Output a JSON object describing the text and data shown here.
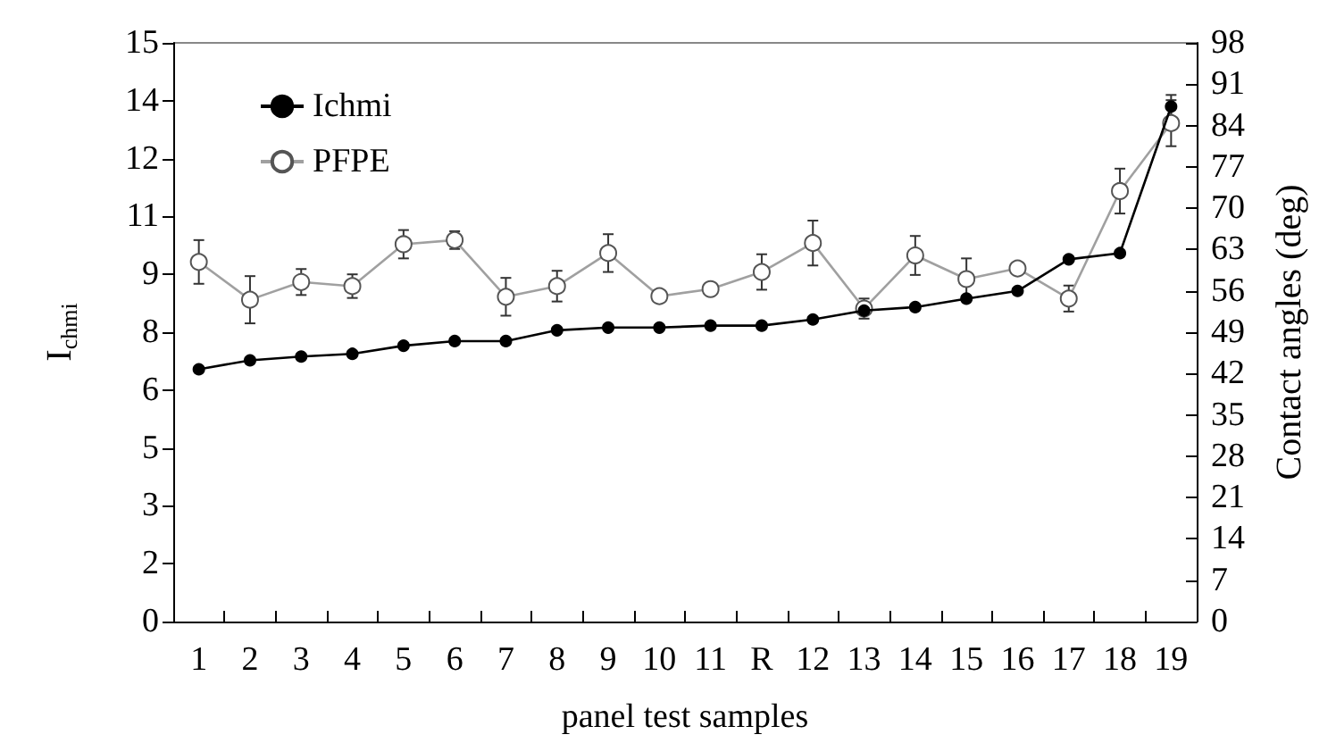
{
  "chart_data": {
    "type": "line",
    "xlabel": "panel test samples",
    "ylabel": "I$_{chmi}$",
    "y2label": "Contact angles (deg)",
    "categories": [
      "1",
      "2",
      "3",
      "4",
      "5",
      "6",
      "7",
      "8",
      "9",
      "10",
      "11",
      "R",
      "12",
      "13",
      "14",
      "15",
      "16",
      "17",
      "18",
      "19"
    ],
    "series": [
      {
        "name": "Ichmi",
        "color": "#000000",
        "values": [
          6.54,
          6.77,
          6.87,
          6.94,
          7.15,
          7.27,
          7.27,
          7.55,
          7.62,
          7.62,
          7.67,
          7.67,
          7.83,
          8.06,
          8.15,
          8.37,
          8.57,
          9.39,
          9.55,
          13.35
        ],
        "errors": [
          null,
          null,
          null,
          null,
          null,
          null,
          null,
          null,
          null,
          null,
          null,
          null,
          null,
          null,
          null,
          null,
          null,
          null,
          null,
          0.3
        ]
      },
      {
        "name": "PFPE",
        "color": "#a0a0a0",
        "axis": "y2",
        "values": [
          60.9,
          54.5,
          57.5,
          56.8,
          63.9,
          64.6,
          55.0,
          56.8,
          62.4,
          55.1,
          56.3,
          59.2,
          64.1,
          53.0,
          62.0,
          58.0,
          59.8,
          54.7,
          72.9,
          84.4
        ],
        "errors": [
          3.7,
          4.0,
          2.2,
          2.0,
          2.4,
          1.5,
          3.2,
          2.6,
          3.2,
          null,
          null,
          3.0,
          3.8,
          1.7,
          3.3,
          3.5,
          null,
          2.2,
          3.8,
          3.9
        ]
      }
    ],
    "ylim": [
      0,
      15
    ],
    "yticks": [
      0,
      {
        "value": 1.5,
        "label": "2"
      },
      3,
      {
        "value": 4.5,
        "label": "5"
      },
      6,
      {
        "value": 7.5,
        "label": "8"
      },
      9,
      {
        "value": 10.5,
        "label": "11"
      },
      12,
      {
        "value": 13.5,
        "label": "14"
      },
      15
    ],
    "y2lim": [
      0,
      98
    ],
    "y2ticks": [
      0,
      7,
      14,
      21,
      28,
      35,
      42,
      49,
      56,
      63,
      70,
      77,
      84,
      91,
      98
    ],
    "marker": "circle",
    "line_style": "solid",
    "legend": "top left",
    "grid": false
  }
}
